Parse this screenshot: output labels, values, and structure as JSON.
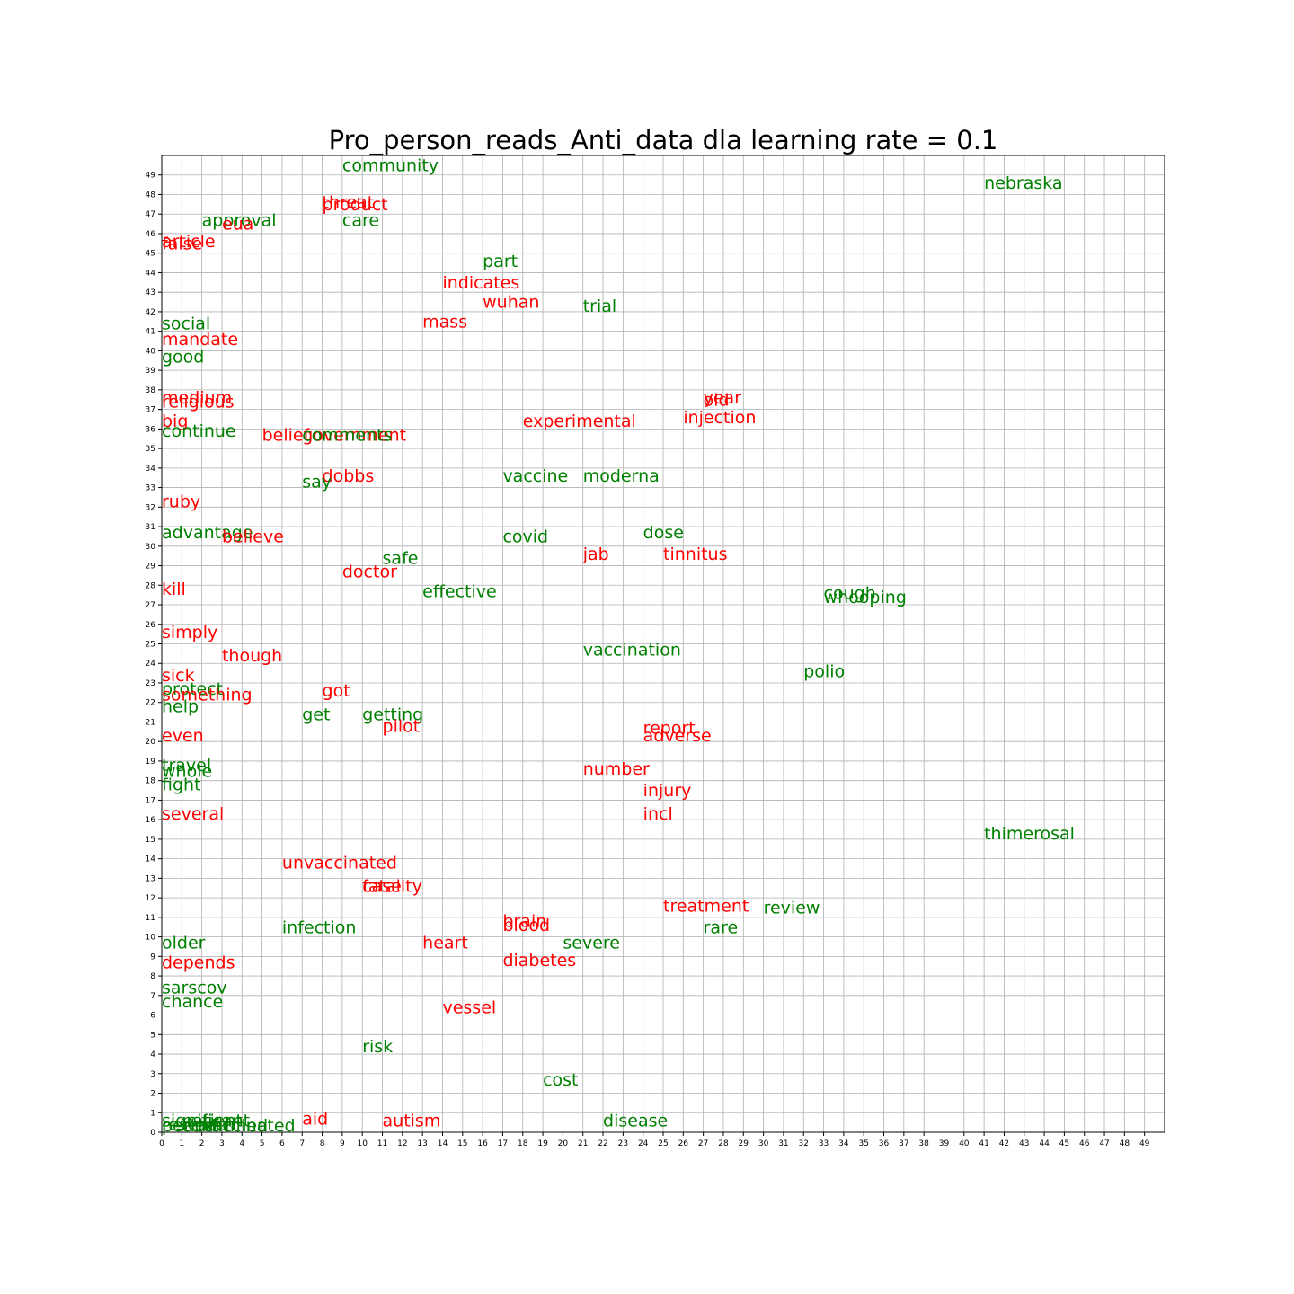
{
  "chart_data": {
    "type": "scatter",
    "title": "Pro_person_reads_Anti_data dla learning rate = 0.1",
    "xlabel": "",
    "ylabel": "",
    "xlim": [
      0,
      50
    ],
    "ylim": [
      0,
      50
    ],
    "grid": true,
    "colors": {
      "green": "#008000",
      "red": "#ff0000"
    },
    "points": [
      {
        "text": "community",
        "x": 9,
        "y": 49.2,
        "color": "green"
      },
      {
        "text": "nebraska",
        "x": 41,
        "y": 48.3,
        "color": "green"
      },
      {
        "text": "threat",
        "x": 8,
        "y": 47.3,
        "color": "red"
      },
      {
        "text": "product",
        "x": 8,
        "y": 47.2,
        "color": "red"
      },
      {
        "text": "approval",
        "x": 2,
        "y": 46.4,
        "color": "green"
      },
      {
        "text": "eua",
        "x": 3,
        "y": 46.2,
        "color": "red"
      },
      {
        "text": "care",
        "x": 9,
        "y": 46.4,
        "color": "green"
      },
      {
        "text": "article",
        "x": 0,
        "y": 45.3,
        "color": "red"
      },
      {
        "text": "false",
        "x": 0,
        "y": 45.2,
        "color": "red"
      },
      {
        "text": "part",
        "x": 16,
        "y": 44.3,
        "color": "green"
      },
      {
        "text": "indicates",
        "x": 14,
        "y": 43.2,
        "color": "red"
      },
      {
        "text": "wuhan",
        "x": 16,
        "y": 42.2,
        "color": "red"
      },
      {
        "text": "trial",
        "x": 21,
        "y": 42,
        "color": "green"
      },
      {
        "text": "mass",
        "x": 13,
        "y": 41.2,
        "color": "red"
      },
      {
        "text": "social",
        "x": 0,
        "y": 41.1,
        "color": "green"
      },
      {
        "text": "mandate",
        "x": 0,
        "y": 40.3,
        "color": "red"
      },
      {
        "text": "good",
        "x": 0,
        "y": 39.4,
        "color": "green"
      },
      {
        "text": "medium",
        "x": 0,
        "y": 37.3,
        "color": "red"
      },
      {
        "text": "religious",
        "x": 0,
        "y": 37.1,
        "color": "red"
      },
      {
        "text": "year",
        "x": 27,
        "y": 37.3,
        "color": "red"
      },
      {
        "text": "old",
        "x": 27,
        "y": 37.2,
        "color": "red"
      },
      {
        "text": "injection",
        "x": 26,
        "y": 36.3,
        "color": "red"
      },
      {
        "text": "experimental",
        "x": 18,
        "y": 36.1,
        "color": "red"
      },
      {
        "text": "big",
        "x": 0,
        "y": 36.1,
        "color": "red"
      },
      {
        "text": "continue",
        "x": 0,
        "y": 35.6,
        "color": "green"
      },
      {
        "text": "belief",
        "x": 5,
        "y": 35.4,
        "color": "red"
      },
      {
        "text": "government",
        "x": 7,
        "y": 35.4,
        "color": "red"
      },
      {
        "text": "comments",
        "x": 7,
        "y": 35.4,
        "color": "green"
      },
      {
        "text": "vaccine",
        "x": 17,
        "y": 33.3,
        "color": "green"
      },
      {
        "text": "moderna",
        "x": 21,
        "y": 33.3,
        "color": "green"
      },
      {
        "text": "dobbs",
        "x": 8,
        "y": 33.3,
        "color": "red"
      },
      {
        "text": "say",
        "x": 7,
        "y": 33,
        "color": "green"
      },
      {
        "text": "ruby",
        "x": 0,
        "y": 32,
        "color": "red"
      },
      {
        "text": "advantage",
        "x": 0,
        "y": 30.4,
        "color": "green"
      },
      {
        "text": "believe",
        "x": 3,
        "y": 30.2,
        "color": "red"
      },
      {
        "text": "covid",
        "x": 17,
        "y": 30.2,
        "color": "green"
      },
      {
        "text": "dose",
        "x": 24,
        "y": 30.4,
        "color": "green"
      },
      {
        "text": "jab",
        "x": 21,
        "y": 29.3,
        "color": "red"
      },
      {
        "text": "tinnitus",
        "x": 25,
        "y": 29.3,
        "color": "red"
      },
      {
        "text": "safe",
        "x": 11,
        "y": 29.1,
        "color": "green"
      },
      {
        "text": "doctor",
        "x": 9,
        "y": 28.4,
        "color": "red"
      },
      {
        "text": "effective",
        "x": 13,
        "y": 27.4,
        "color": "green"
      },
      {
        "text": "kill",
        "x": 0,
        "y": 27.5,
        "color": "red"
      },
      {
        "text": "cough",
        "x": 33,
        "y": 27.3,
        "color": "green"
      },
      {
        "text": "whooping",
        "x": 33,
        "y": 27.1,
        "color": "green"
      },
      {
        "text": "simply",
        "x": 0,
        "y": 25.3,
        "color": "red"
      },
      {
        "text": "though",
        "x": 3,
        "y": 24.1,
        "color": "red"
      },
      {
        "text": "vaccination",
        "x": 21,
        "y": 24.4,
        "color": "green"
      },
      {
        "text": "polio",
        "x": 32,
        "y": 23.3,
        "color": "green"
      },
      {
        "text": "sick",
        "x": 0,
        "y": 23.1,
        "color": "red"
      },
      {
        "text": "protect",
        "x": 0,
        "y": 22.4,
        "color": "green"
      },
      {
        "text": "something",
        "x": 0,
        "y": 22.1,
        "color": "red"
      },
      {
        "text": "got",
        "x": 8,
        "y": 22.3,
        "color": "red"
      },
      {
        "text": "help",
        "x": 0,
        "y": 21.5,
        "color": "green"
      },
      {
        "text": "get",
        "x": 7,
        "y": 21.1,
        "color": "green"
      },
      {
        "text": "getting",
        "x": 10,
        "y": 21.1,
        "color": "green"
      },
      {
        "text": "pilot",
        "x": 11,
        "y": 20.5,
        "color": "red"
      },
      {
        "text": "report",
        "x": 24,
        "y": 20.4,
        "color": "red"
      },
      {
        "text": "adverse",
        "x": 24,
        "y": 20,
        "color": "red"
      },
      {
        "text": "even",
        "x": 0,
        "y": 20,
        "color": "red"
      },
      {
        "text": "travel",
        "x": 0,
        "y": 18.5,
        "color": "green"
      },
      {
        "text": "number",
        "x": 21,
        "y": 18.3,
        "color": "red"
      },
      {
        "text": "whole",
        "x": 0,
        "y": 18.2,
        "color": "green"
      },
      {
        "text": "fight",
        "x": 0,
        "y": 17.5,
        "color": "green"
      },
      {
        "text": "injury",
        "x": 24,
        "y": 17.2,
        "color": "red"
      },
      {
        "text": "incl",
        "x": 24,
        "y": 16,
        "color": "red"
      },
      {
        "text": "several",
        "x": 0,
        "y": 16,
        "color": "red"
      },
      {
        "text": "thimerosal",
        "x": 41,
        "y": 15,
        "color": "green"
      },
      {
        "text": "unvaccinated",
        "x": 6,
        "y": 13.5,
        "color": "red"
      },
      {
        "text": "case",
        "x": 10,
        "y": 12.3,
        "color": "red"
      },
      {
        "text": "fatality",
        "x": 10,
        "y": 12.3,
        "color": "red"
      },
      {
        "text": "treatment",
        "x": 25,
        "y": 11.3,
        "color": "red"
      },
      {
        "text": "review",
        "x": 30,
        "y": 11.2,
        "color": "green"
      },
      {
        "text": "brain",
        "x": 17,
        "y": 10.5,
        "color": "red"
      },
      {
        "text": "blood",
        "x": 17,
        "y": 10.3,
        "color": "red"
      },
      {
        "text": "infection",
        "x": 6,
        "y": 10.2,
        "color": "green"
      },
      {
        "text": "rare",
        "x": 27,
        "y": 10.2,
        "color": "green"
      },
      {
        "text": "older",
        "x": 0,
        "y": 9.4,
        "color": "green"
      },
      {
        "text": "heart",
        "x": 13,
        "y": 9.4,
        "color": "red"
      },
      {
        "text": "severe",
        "x": 20,
        "y": 9.4,
        "color": "green"
      },
      {
        "text": "diabetes",
        "x": 17,
        "y": 8.5,
        "color": "red"
      },
      {
        "text": "depends",
        "x": 0,
        "y": 8.4,
        "color": "red"
      },
      {
        "text": "sarscov",
        "x": 0,
        "y": 7.1,
        "color": "green"
      },
      {
        "text": "chance",
        "x": 0,
        "y": 6.4,
        "color": "green"
      },
      {
        "text": "vessel",
        "x": 14,
        "y": 6.1,
        "color": "red"
      },
      {
        "text": "risk",
        "x": 10,
        "y": 4.1,
        "color": "green"
      },
      {
        "text": "cost",
        "x": 19,
        "y": 2.4,
        "color": "green"
      },
      {
        "text": "aid",
        "x": 7,
        "y": 0.4,
        "color": "red"
      },
      {
        "text": "autism",
        "x": 11,
        "y": 0.3,
        "color": "red"
      },
      {
        "text": "disease",
        "x": 22,
        "y": 0.3,
        "color": "green"
      },
      {
        "text": "significant",
        "x": 0,
        "y": 0.3,
        "color": "green"
      },
      {
        "text": "patient",
        "x": 1,
        "y": 0.3,
        "color": "green"
      },
      {
        "text": "research",
        "x": 0,
        "y": 0.1,
        "color": "green"
      },
      {
        "text": "period",
        "x": 0,
        "y": 0.05,
        "color": "green"
      },
      {
        "text": "confirmed",
        "x": 1,
        "y": 0.05,
        "color": "green"
      },
      {
        "text": "vaccinated",
        "x": 2,
        "y": 0.05,
        "color": "green"
      }
    ],
    "xticks": [
      0,
      1,
      2,
      3,
      4,
      5,
      6,
      7,
      8,
      9,
      10,
      11,
      12,
      13,
      14,
      15,
      16,
      17,
      18,
      19,
      20,
      21,
      22,
      23,
      24,
      25,
      26,
      27,
      28,
      29,
      30,
      31,
      32,
      33,
      34,
      35,
      36,
      37,
      38,
      39,
      40,
      41,
      42,
      43,
      44,
      45,
      46,
      47,
      48,
      49
    ],
    "yticks": [
      0,
      1,
      2,
      3,
      4,
      5,
      6,
      7,
      8,
      9,
      10,
      11,
      12,
      13,
      14,
      15,
      16,
      17,
      18,
      19,
      20,
      21,
      22,
      23,
      24,
      25,
      26,
      27,
      28,
      29,
      30,
      31,
      32,
      33,
      34,
      35,
      36,
      37,
      38,
      39,
      40,
      41,
      42,
      43,
      44,
      45,
      46,
      47,
      48,
      49
    ]
  }
}
